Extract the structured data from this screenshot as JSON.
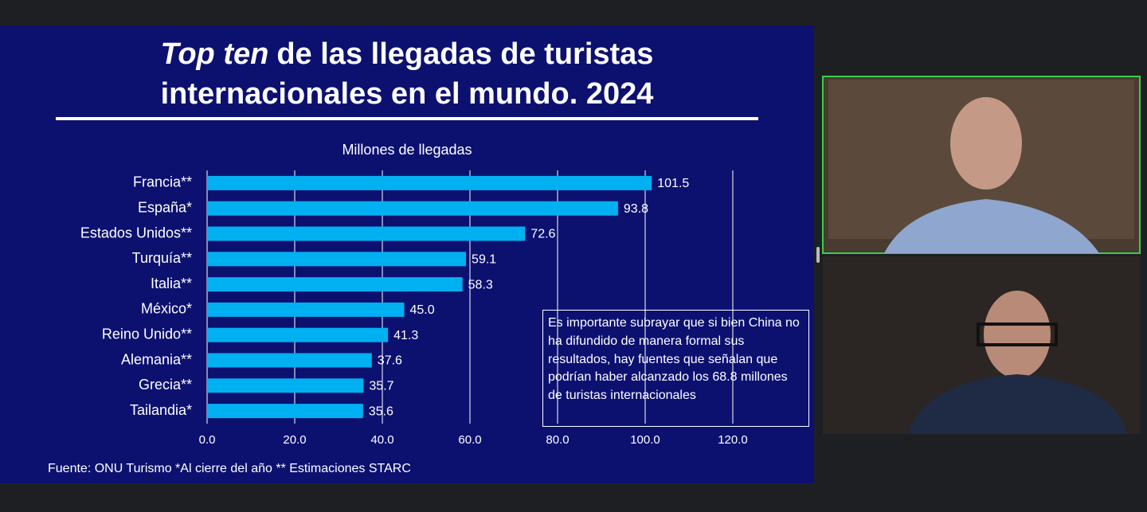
{
  "slide": {
    "title_emphasis": "Top ten",
    "title_line1": "de las llegadas de turistas",
    "title_line2": "internacionales en el mundo. 2024",
    "note": "Es importante subrayar que si bien China no ha difundido de manera formal sus resultados, hay fuentes que señalan que podrían haber alcanzado los 68.8 millones de turistas internacionales",
    "source": "Fuente: ONU Turismo *Al cierre del año ** Estimaciones STARC"
  },
  "chart_data": {
    "type": "bar",
    "orientation": "horizontal",
    "x_label": "Millones de llegadas",
    "categories": [
      "Francia**",
      "España*",
      "Estados Unidos**",
      "Turquía**",
      "Italia**",
      "México*",
      "Reino Unido**",
      "Alemania**",
      "Grecia**",
      "Tailandia*"
    ],
    "values": [
      101.5,
      93.8,
      72.6,
      59.1,
      58.3,
      45.0,
      41.3,
      37.6,
      35.7,
      35.6
    ],
    "value_labels": [
      "101.5",
      "93.8",
      "72.6",
      "59.1",
      "58.3",
      "45.0",
      "41.3",
      "37.6",
      "35.7",
      "35.6"
    ],
    "color": "#00b0f0",
    "xlim": [
      0,
      130
    ],
    "xticks": [
      {
        "value": 0,
        "label": "0.0"
      },
      {
        "value": 20,
        "label": "20.0"
      },
      {
        "value": 40,
        "label": "40.0"
      },
      {
        "value": 60,
        "label": "60.0"
      },
      {
        "value": 80,
        "label": "80.0"
      },
      {
        "value": 100,
        "label": "100.0"
      },
      {
        "value": 120,
        "label": "120.0"
      }
    ],
    "grid": true
  }
}
